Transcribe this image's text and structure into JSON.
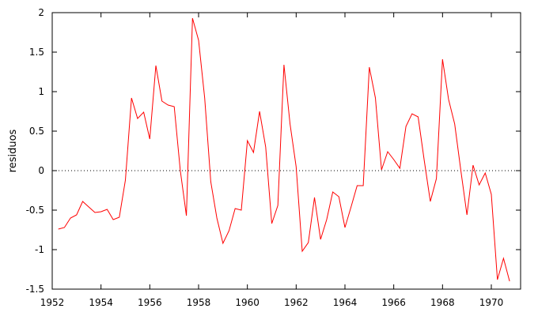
{
  "chart_data": {
    "type": "line",
    "ylabel": "residuos",
    "xlim": [
      1952,
      1971.2
    ],
    "ylim": [
      -1.5,
      2
    ],
    "x_ticks": [
      1952,
      1954,
      1956,
      1958,
      1960,
      1962,
      1964,
      1966,
      1968,
      1970
    ],
    "x_tick_labels": [
      "1952",
      "1954",
      "1956",
      "1958",
      "1960",
      "1962",
      "1964",
      "1966",
      "1968",
      "1970"
    ],
    "y_ticks": [
      -1.5,
      -1,
      -0.5,
      0,
      0.5,
      1,
      1.5,
      2
    ],
    "y_tick_labels": [
      "-1.5",
      "-1",
      "-0.5",
      "0",
      "0.5",
      "1",
      "1.5",
      "2"
    ],
    "zero_line": true,
    "grid": false,
    "series": [
      {
        "color": "#ff0000",
        "x": [
          1952.25,
          1952.5,
          1952.75,
          1953,
          1953.25,
          1953.5,
          1953.75,
          1954,
          1954.25,
          1954.5,
          1954.75,
          1955,
          1955.25,
          1955.5,
          1955.75,
          1956,
          1956.25,
          1956.5,
          1956.75,
          1957,
          1957.25,
          1957.5,
          1957.75,
          1958,
          1958.25,
          1958.5,
          1958.75,
          1959,
          1959.25,
          1959.5,
          1959.75,
          1960,
          1960.25,
          1960.5,
          1960.75,
          1961,
          1961.25,
          1961.5,
          1961.75,
          1962,
          1962.25,
          1962.5,
          1962.75,
          1963,
          1963.25,
          1963.5,
          1963.75,
          1964,
          1964.25,
          1964.5,
          1964.75,
          1965,
          1965.25,
          1965.5,
          1965.75,
          1966,
          1966.25,
          1966.5,
          1966.75,
          1967,
          1967.25,
          1967.5,
          1967.75,
          1968,
          1968.25,
          1968.5,
          1968.75,
          1969,
          1969.25,
          1969.5,
          1969.75,
          1970,
          1970.25,
          1970.5,
          1970.75
        ],
        "y": [
          -0.74,
          -0.72,
          -0.6,
          -0.56,
          -0.39,
          -0.46,
          -0.53,
          -0.52,
          -0.49,
          -0.62,
          -0.59,
          -0.12,
          0.92,
          0.66,
          0.74,
          0.4,
          1.33,
          0.88,
          0.83,
          0.81,
          0.0,
          -0.57,
          1.93,
          1.65,
          0.92,
          -0.14,
          -0.6,
          -0.92,
          -0.76,
          -0.48,
          -0.5,
          0.38,
          0.23,
          0.75,
          0.3,
          -0.67,
          -0.44,
          1.34,
          0.59,
          0.05,
          -1.02,
          -0.91,
          -0.34,
          -0.87,
          -0.62,
          -0.27,
          -0.33,
          -0.72,
          -0.46,
          -0.19,
          -0.19,
          1.31,
          0.92,
          0.01,
          0.24,
          0.14,
          0.03,
          0.56,
          0.72,
          0.68,
          0.13,
          -0.39,
          -0.1,
          1.41,
          0.9,
          0.59,
          0.0,
          -0.56,
          0.07,
          -0.18,
          -0.03,
          -0.3,
          -1.38,
          -1.11,
          -1.4
        ]
      }
    ]
  }
}
